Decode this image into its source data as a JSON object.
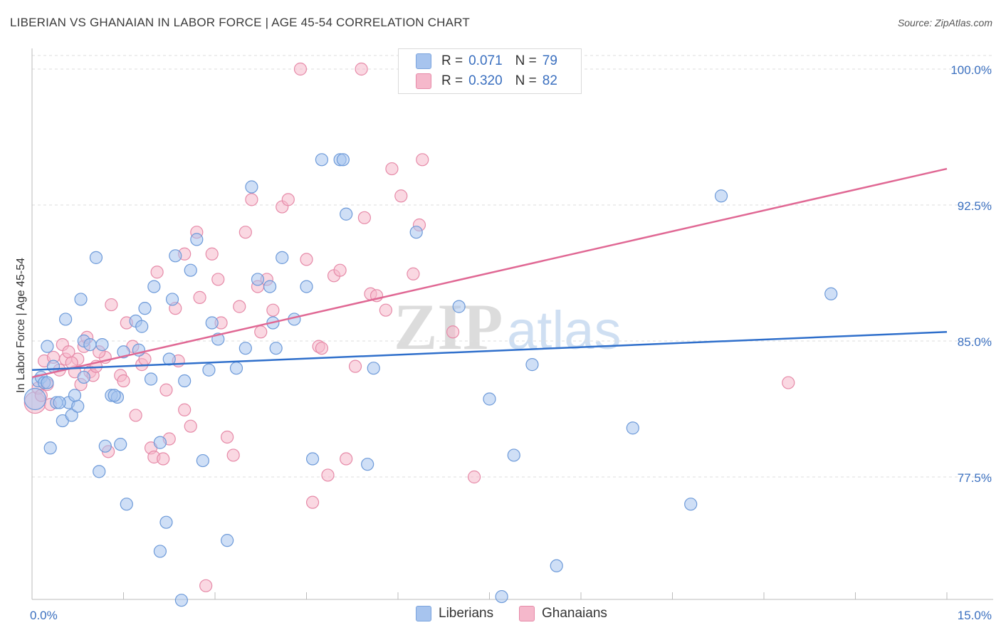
{
  "header": {
    "title": "LIBERIAN VS GHANAIAN IN LABOR FORCE | AGE 45-54 CORRELATION CHART",
    "source": "Source: ZipAtlas.com"
  },
  "legend": {
    "rows": [
      {
        "r_label": "R =",
        "r_value": "0.071",
        "n_label": "N =",
        "n_value": "79",
        "color": "#a7c4ee"
      },
      {
        "r_label": "R =",
        "r_value": "0.320",
        "n_label": "N =",
        "n_value": "82",
        "color": "#f5b8cb"
      }
    ]
  },
  "bottom_legend": {
    "series1": "Liberians",
    "series2": "Ghanaians"
  },
  "watermark": {
    "zip": "ZIP",
    "atlas": "atlas"
  },
  "colors": {
    "blue_fill": "#a7c4ee",
    "blue_stroke": "#6d9ad9",
    "blue_line": "#2f6fcb",
    "pink_fill": "#f5b8cb",
    "pink_stroke": "#e68aa8",
    "pink_line": "#e06894",
    "tick_text": "#3a6fbf"
  },
  "chart_data": {
    "type": "scatter",
    "title": "LIBERIAN VS GHANAIAN IN LABOR FORCE | AGE 45-54 CORRELATION CHART",
    "xlabel": "",
    "ylabel": "In Labor Force | Age 45-54",
    "xlim": [
      0.0,
      15.0
    ],
    "ylim": [
      70.0,
      101.5
    ],
    "x_tick_labels": [
      {
        "value": 0.0,
        "label": "0.0%"
      },
      {
        "value": 15.0,
        "label": "15.0%"
      }
    ],
    "y_ticks": [
      {
        "value": 100.0,
        "label": "100.0%"
      },
      {
        "value": 92.5,
        "label": "92.5%"
      },
      {
        "value": 85.0,
        "label": "85.0%"
      },
      {
        "value": 77.5,
        "label": "77.5%"
      }
    ],
    "series": [
      {
        "name": "Liberians",
        "r": 0.071,
        "n": 79,
        "trend": {
          "x": [
            0.0,
            15.0
          ],
          "y": [
            83.4,
            85.5
          ]
        },
        "points": [
          [
            0.05,
            81.8
          ],
          [
            0.1,
            82.8
          ],
          [
            0.15,
            83.0
          ],
          [
            0.2,
            82.7
          ],
          [
            0.25,
            84.7
          ],
          [
            0.3,
            79.1
          ],
          [
            0.35,
            83.6
          ],
          [
            0.4,
            81.6
          ],
          [
            0.5,
            80.6
          ],
          [
            0.55,
            86.2
          ],
          [
            0.6,
            81.6
          ],
          [
            0.65,
            80.9
          ],
          [
            0.75,
            81.4
          ],
          [
            0.8,
            87.3
          ],
          [
            0.85,
            85.0
          ],
          [
            0.95,
            84.8
          ],
          [
            1.05,
            89.6
          ],
          [
            1.1,
            77.8
          ],
          [
            1.2,
            79.2
          ],
          [
            1.3,
            82.0
          ],
          [
            1.4,
            81.9
          ],
          [
            1.5,
            84.4
          ],
          [
            1.55,
            76.0
          ],
          [
            1.7,
            86.1
          ],
          [
            1.8,
            85.8
          ],
          [
            1.85,
            86.8
          ],
          [
            2.0,
            88.0
          ],
          [
            2.1,
            79.4
          ],
          [
            2.2,
            75.0
          ],
          [
            2.3,
            87.3
          ],
          [
            2.35,
            89.7
          ],
          [
            2.45,
            70.7
          ],
          [
            2.6,
            88.9
          ],
          [
            2.7,
            90.6
          ],
          [
            2.8,
            78.4
          ],
          [
            2.95,
            86.0
          ],
          [
            3.05,
            85.1
          ],
          [
            3.2,
            74.0
          ],
          [
            3.35,
            83.5
          ],
          [
            3.6,
            93.5
          ],
          [
            3.7,
            88.4
          ],
          [
            3.9,
            88.0
          ],
          [
            4.1,
            89.6
          ],
          [
            4.3,
            86.2
          ],
          [
            4.5,
            88.0
          ],
          [
            4.6,
            78.5
          ],
          [
            4.75,
            95.0
          ],
          [
            5.05,
            95.0
          ],
          [
            5.15,
            92.0
          ],
          [
            5.6,
            83.5
          ],
          [
            6.3,
            91.0
          ],
          [
            7.0,
            86.9
          ],
          [
            7.5,
            81.8
          ],
          [
            7.7,
            70.9
          ],
          [
            7.9,
            78.7
          ],
          [
            8.2,
            83.7
          ],
          [
            8.6,
            72.6
          ],
          [
            9.85,
            80.2
          ],
          [
            10.8,
            76.0
          ],
          [
            11.3,
            93.0
          ],
          [
            13.1,
            87.6
          ],
          [
            1.95,
            82.9
          ],
          [
            1.15,
            84.8
          ],
          [
            2.25,
            84.0
          ],
          [
            0.7,
            82.0
          ],
          [
            3.5,
            84.6
          ],
          [
            4.0,
            84.6
          ],
          [
            2.9,
            83.4
          ],
          [
            1.45,
            79.3
          ],
          [
            0.45,
            81.6
          ],
          [
            1.75,
            84.5
          ],
          [
            2.1,
            73.4
          ],
          [
            0.85,
            83.0
          ],
          [
            3.95,
            86.0
          ],
          [
            5.5,
            78.2
          ],
          [
            5.1,
            95.0
          ],
          [
            2.5,
            82.8
          ],
          [
            1.35,
            82.0
          ],
          [
            0.25,
            82.7
          ]
        ]
      },
      {
        "name": "Ghanaians",
        "r": 0.32,
        "n": 82,
        "trend": {
          "x": [
            0.0,
            15.0
          ],
          "y": [
            83.0,
            94.5
          ]
        },
        "points": [
          [
            0.05,
            81.6
          ],
          [
            0.1,
            82.4
          ],
          [
            0.2,
            83.9
          ],
          [
            0.25,
            82.6
          ],
          [
            0.3,
            81.5
          ],
          [
            0.45,
            83.4
          ],
          [
            0.5,
            84.8
          ],
          [
            0.55,
            84.0
          ],
          [
            0.6,
            84.4
          ],
          [
            0.7,
            83.3
          ],
          [
            0.75,
            84.0
          ],
          [
            0.8,
            82.6
          ],
          [
            0.85,
            84.7
          ],
          [
            0.95,
            83.3
          ],
          [
            1.0,
            83.1
          ],
          [
            1.05,
            83.6
          ],
          [
            1.2,
            84.1
          ],
          [
            1.3,
            87.0
          ],
          [
            1.45,
            83.1
          ],
          [
            1.55,
            86.0
          ],
          [
            1.65,
            84.7
          ],
          [
            1.7,
            80.9
          ],
          [
            1.8,
            83.7
          ],
          [
            1.85,
            84.0
          ],
          [
            1.95,
            79.1
          ],
          [
            2.0,
            78.6
          ],
          [
            2.05,
            88.8
          ],
          [
            2.15,
            78.5
          ],
          [
            2.25,
            79.6
          ],
          [
            2.35,
            86.8
          ],
          [
            2.4,
            83.9
          ],
          [
            2.5,
            89.8
          ],
          [
            2.6,
            80.3
          ],
          [
            2.7,
            91.0
          ],
          [
            2.75,
            87.4
          ],
          [
            2.85,
            71.5
          ],
          [
            2.95,
            89.8
          ],
          [
            3.05,
            88.4
          ],
          [
            3.1,
            86.0
          ],
          [
            3.2,
            79.7
          ],
          [
            3.3,
            78.7
          ],
          [
            3.4,
            86.9
          ],
          [
            3.5,
            91.0
          ],
          [
            3.6,
            92.8
          ],
          [
            3.7,
            88.0
          ],
          [
            3.85,
            88.4
          ],
          [
            3.95,
            86.7
          ],
          [
            4.1,
            92.4
          ],
          [
            4.2,
            92.8
          ],
          [
            4.4,
            100.0
          ],
          [
            4.5,
            89.5
          ],
          [
            4.7,
            84.7
          ],
          [
            4.75,
            84.6
          ],
          [
            4.85,
            77.6
          ],
          [
            4.95,
            88.6
          ],
          [
            5.05,
            88.9
          ],
          [
            5.15,
            78.5
          ],
          [
            5.3,
            83.6
          ],
          [
            5.4,
            100.0
          ],
          [
            5.45,
            91.8
          ],
          [
            5.55,
            87.6
          ],
          [
            5.65,
            87.5
          ],
          [
            5.8,
            86.7
          ],
          [
            5.9,
            94.5
          ],
          [
            6.05,
            93.0
          ],
          [
            6.25,
            88.7
          ],
          [
            6.35,
            91.4
          ],
          [
            6.4,
            95.0
          ],
          [
            6.9,
            85.5
          ],
          [
            7.25,
            77.5
          ],
          [
            12.4,
            82.7
          ],
          [
            4.6,
            76.1
          ],
          [
            2.2,
            82.3
          ],
          [
            1.5,
            82.8
          ],
          [
            0.65,
            83.8
          ],
          [
            0.35,
            84.1
          ],
          [
            1.1,
            84.4
          ],
          [
            2.5,
            81.2
          ],
          [
            1.25,
            78.9
          ],
          [
            0.9,
            85.2
          ],
          [
            3.75,
            85.5
          ],
          [
            0.15,
            82.0
          ]
        ]
      }
    ]
  }
}
